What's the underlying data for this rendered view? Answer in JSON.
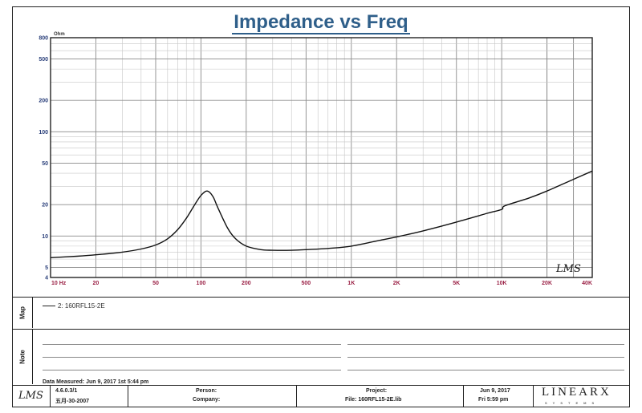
{
  "chart_data": {
    "type": "line",
    "title": "Impedance vs Freq",
    "y_unit": "Ohm",
    "x_unit": "Hz",
    "x_scale": "log",
    "y_scale": "log",
    "xlim": [
      10,
      40000
    ],
    "ylim": [
      4,
      800
    ],
    "x_ticks": [
      {
        "v": 10,
        "label": "10 Hz"
      },
      {
        "v": 20,
        "label": "20"
      },
      {
        "v": 50,
        "label": "50"
      },
      {
        "v": 100,
        "label": "100"
      },
      {
        "v": 200,
        "label": "200"
      },
      {
        "v": 500,
        "label": "500"
      },
      {
        "v": 1000,
        "label": "1K"
      },
      {
        "v": 2000,
        "label": "2K"
      },
      {
        "v": 5000,
        "label": "5K"
      },
      {
        "v": 10000,
        "label": "10K"
      },
      {
        "v": 20000,
        "label": "20K"
      },
      {
        "v": 40000,
        "label": "40K"
      }
    ],
    "y_ticks": [
      {
        "v": 800,
        "label": "800"
      },
      {
        "v": 500,
        "label": "500"
      },
      {
        "v": 200,
        "label": "200"
      },
      {
        "v": 100,
        "label": "100"
      },
      {
        "v": 50,
        "label": "50"
      },
      {
        "v": 20,
        "label": "20"
      },
      {
        "v": 10,
        "label": "10"
      },
      {
        "v": 5,
        "label": "5"
      },
      {
        "v": 4,
        "label": "4"
      }
    ],
    "grid": true,
    "series": [
      {
        "name": "160RFL15-2E",
        "color": "#111111",
        "points": [
          [
            10,
            6.2
          ],
          [
            15,
            6.4
          ],
          [
            20,
            6.6
          ],
          [
            30,
            7.0
          ],
          [
            40,
            7.5
          ],
          [
            50,
            8.2
          ],
          [
            60,
            9.4
          ],
          [
            70,
            11.5
          ],
          [
            80,
            14.8
          ],
          [
            90,
            19.5
          ],
          [
            100,
            24.5
          ],
          [
            110,
            27.0
          ],
          [
            120,
            24.0
          ],
          [
            130,
            18.5
          ],
          [
            150,
            12.0
          ],
          [
            170,
            9.4
          ],
          [
            200,
            8.0
          ],
          [
            250,
            7.4
          ],
          [
            300,
            7.3
          ],
          [
            400,
            7.3
          ],
          [
            500,
            7.4
          ],
          [
            700,
            7.6
          ],
          [
            1000,
            8.0
          ],
          [
            1500,
            9.0
          ],
          [
            2000,
            9.8
          ],
          [
            3000,
            11.2
          ],
          [
            5000,
            13.6
          ],
          [
            8000,
            16.5
          ],
          [
            10000,
            18.0
          ],
          [
            10500,
            19.5
          ],
          [
            15000,
            23.0
          ],
          [
            20000,
            27.0
          ],
          [
            30000,
            35.0
          ],
          [
            40000,
            42.0
          ]
        ]
      }
    ]
  },
  "header": {
    "title": "Impedance vs Freq",
    "y_unit_label": "Ohm",
    "logo_text": "LMS"
  },
  "map": {
    "label": "Map",
    "entry": "2: 160RFL15-2E"
  },
  "note": {
    "label": "Note",
    "measured": "Data Measured: Jun 9, 2017  1st 5:44 pm"
  },
  "footer": {
    "lms": "LMS",
    "version": "4.6.0.3/1",
    "date_code": "五月-30-2007",
    "person_label": "Person:",
    "company_label": "Company:",
    "project_label": "Project:",
    "file_label": "File: 160RFL15-2E.lib",
    "date": "Jun 9, 2017",
    "time": "Fri 5:59 pm",
    "brand": "LINEARX",
    "brand_sub": "SYSTEMS"
  }
}
